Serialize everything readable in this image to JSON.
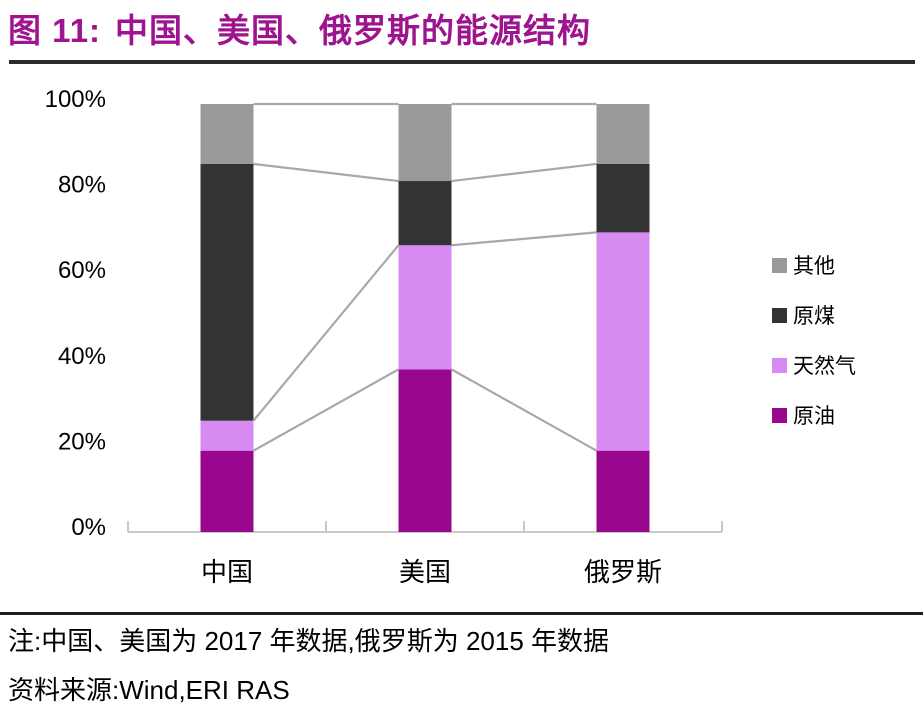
{
  "header": {
    "title_prefix": "图 11:",
    "title_main": "中国、美国、俄罗斯的能源结构"
  },
  "colors": {
    "title": "#9E148E",
    "rule_top": "#2B2B2B",
    "rule_bottom": "#1E1E1E",
    "axis_line": "#C9C9C9",
    "series_line": "#A8A8A8",
    "text": "#000000"
  },
  "chart_data": {
    "type": "bar",
    "stacked": true,
    "unit": "%",
    "categories": [
      "中国",
      "美国",
      "俄罗斯"
    ],
    "series": [
      {
        "name": "原油",
        "color": "#98078E",
        "values": [
          19,
          38,
          19
        ]
      },
      {
        "name": "天然气",
        "color": "#D78BF2",
        "values": [
          7,
          29,
          51
        ]
      },
      {
        "name": "原煤",
        "color": "#333333",
        "values": [
          60,
          15,
          16
        ]
      },
      {
        "name": "其他",
        "color": "#999999",
        "values": [
          14,
          18,
          14
        ]
      }
    ],
    "y_ticks": [
      "0%",
      "20%",
      "40%",
      "60%",
      "80%",
      "100%"
    ],
    "ylim": [
      0,
      100
    ],
    "grid": false,
    "legend_position": "right",
    "legend_order_top_to_bottom": [
      "其他",
      "原煤",
      "天然气",
      "原油"
    ],
    "series_lines": true
  },
  "footer": {
    "note": "注:中国、美国为 2017 年数据,俄罗斯为 2015 年数据",
    "source": "资料来源:Wind,ERI RAS"
  }
}
